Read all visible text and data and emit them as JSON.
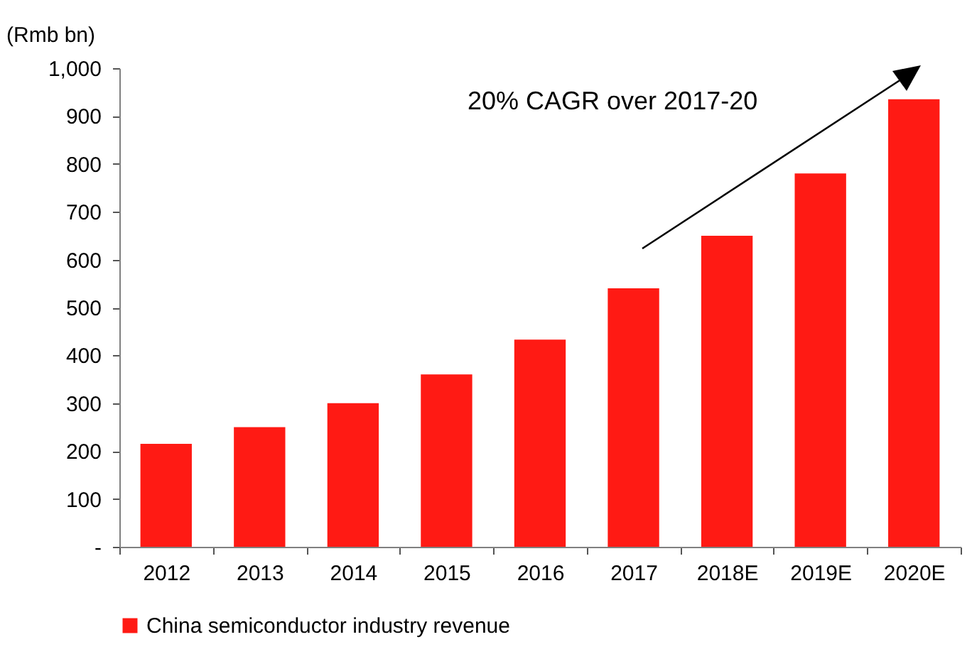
{
  "chart_data": {
    "type": "bar",
    "ylabel": "(Rmb bn)",
    "categories": [
      "2012",
      "2013",
      "2014",
      "2015",
      "2016",
      "2017",
      "2018E",
      "2019E",
      "2020E"
    ],
    "series": [
      {
        "name": "China semiconductor industry revenue",
        "color": "#ff1a14",
        "values": [
          215,
          250,
          300,
          360,
          433,
          540,
          650,
          780,
          935
        ]
      }
    ],
    "ylim": [
      0,
      1000
    ],
    "yticks": [
      {
        "value": 0,
        "label": "-"
      },
      100,
      200,
      300,
      400,
      500,
      600,
      700,
      800,
      900,
      {
        "value": 1000,
        "label": "1,000"
      }
    ],
    "annotations": [
      "20% CAGR over 2017-20"
    ],
    "grid": false,
    "legend": "bottom"
  }
}
